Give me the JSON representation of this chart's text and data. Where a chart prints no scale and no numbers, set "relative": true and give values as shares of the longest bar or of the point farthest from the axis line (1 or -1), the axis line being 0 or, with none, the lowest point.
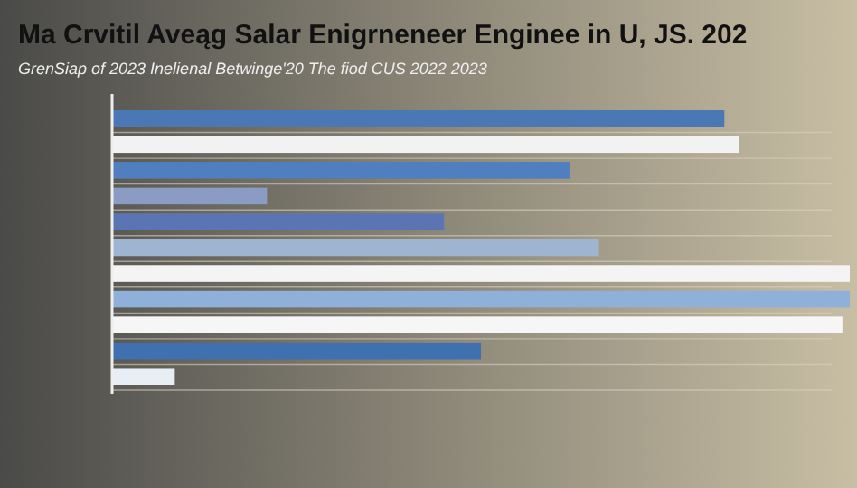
{
  "chart_data": {
    "type": "bar",
    "orientation": "horizontal",
    "relative": true,
    "title": "Ma Crvitil Aveąg Salar Enigrneneer Enginee in U, JS. 202",
    "subtitle": "GrenSiap of 2023 Inelienal Betwinge'20 The fiod CUS 2022 2023",
    "categories": [
      null,
      null,
      null,
      null,
      null,
      null,
      null,
      null,
      null,
      null,
      null
    ],
    "values": [
      0.83,
      0.85,
      0.62,
      0.21,
      0.45,
      0.66,
      1,
      1,
      0.99,
      0.5,
      0.085
    ],
    "colors": [
      "#4a78b4",
      "#f2f2f2",
      "#4f7fbf",
      "#8a9cc4",
      "#5b74b4",
      "#9fb4d0",
      "#f4f4f4",
      "#8fb0d8",
      "#f6f6f6",
      "#3f70b0",
      "#e8eef6"
    ],
    "grid": "y"
  }
}
